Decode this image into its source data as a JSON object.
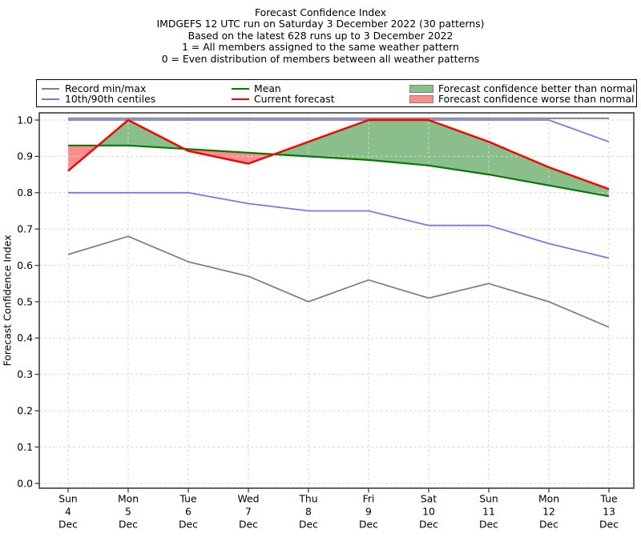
{
  "header": {
    "lines": [
      "Forecast Confidence Index",
      "IMDGEFS 12 UTC run on Saturday 3 December 2022 (30 patterns)",
      "Based on the latest 628 runs up to 3 December 2022",
      "1 = All members assigned to the same weather pattern",
      "0 = Even distribution of members between all weather patterns"
    ]
  },
  "legend": {
    "items": [
      {
        "label": "Record min/max",
        "swatch": "line",
        "color": "#808080"
      },
      {
        "label": "10th/90th centiles",
        "swatch": "line",
        "color": "#7878ee"
      },
      {
        "label": "Mean",
        "swatch": "line",
        "color": "#007d00"
      },
      {
        "label": "Current forecast",
        "swatch": "line",
        "color": "#fe0000"
      },
      {
        "label": "Forecast confidence better than normal",
        "swatch": "patch",
        "color": "#8abe8a"
      },
      {
        "label": "Forecast confidence worse than normal",
        "swatch": "patch",
        "color": "#f78f8f"
      }
    ]
  },
  "chart_data": {
    "type": "line",
    "title": "Forecast Confidence Index",
    "xlabel": "",
    "ylabel": "Forecast Confidence Index",
    "ylim": [
      0.0,
      1.0
    ],
    "yticks": [
      0.0,
      0.1,
      0.2,
      0.3,
      0.4,
      0.5,
      0.6,
      0.7,
      0.8,
      0.9,
      1.0
    ],
    "grid": true,
    "legend_position": "top",
    "categories": [
      {
        "day": "Sun",
        "date": "4",
        "month": "Dec"
      },
      {
        "day": "Mon",
        "date": "5",
        "month": "Dec"
      },
      {
        "day": "Tue",
        "date": "6",
        "month": "Dec"
      },
      {
        "day": "Wed",
        "date": "7",
        "month": "Dec"
      },
      {
        "day": "Thu",
        "date": "8",
        "month": "Dec"
      },
      {
        "day": "Fri",
        "date": "9",
        "month": "Dec"
      },
      {
        "day": "Sat",
        "date": "10",
        "month": "Dec"
      },
      {
        "day": "Sun",
        "date": "11",
        "month": "Dec"
      },
      {
        "day": "Mon",
        "date": "12",
        "month": "Dec"
      },
      {
        "day": "Tue",
        "date": "13",
        "month": "Dec"
      }
    ],
    "series": [
      {
        "name": "Record max",
        "color": "#808080",
        "values": [
          1.0,
          1.0,
          1.0,
          1.0,
          1.0,
          1.0,
          1.0,
          1.0,
          1.0,
          1.0
        ]
      },
      {
        "name": "Record min",
        "color": "#808080",
        "values": [
          0.63,
          0.68,
          0.61,
          0.57,
          0.5,
          0.56,
          0.51,
          0.55,
          0.5,
          0.43
        ]
      },
      {
        "name": "90th centile",
        "color": "#7878ee",
        "values": [
          1.0,
          1.0,
          1.0,
          1.0,
          1.0,
          1.0,
          1.0,
          1.0,
          1.0,
          0.94
        ]
      },
      {
        "name": "10th centile",
        "color": "#7878ee",
        "values": [
          0.8,
          0.8,
          0.8,
          0.77,
          0.75,
          0.75,
          0.71,
          0.71,
          0.66,
          0.62
        ]
      },
      {
        "name": "Mean",
        "color": "#007d00",
        "values": [
          0.93,
          0.93,
          0.92,
          0.91,
          0.9,
          0.89,
          0.875,
          0.85,
          0.82,
          0.79
        ]
      },
      {
        "name": "Current forecast",
        "color": "#fe0000",
        "values": [
          0.86,
          1.0,
          0.915,
          0.88,
          0.94,
          1.0,
          1.0,
          0.94,
          0.87,
          0.81
        ]
      }
    ],
    "fills": {
      "between": [
        "Current forecast",
        "Mean"
      ],
      "better_label": "Forecast confidence better than normal",
      "worse_label": "Forecast confidence worse than normal",
      "better_color": "#8abe8a",
      "worse_color": "#f78f8f"
    }
  },
  "colors": {
    "background": "#ffffff",
    "grid": "#d6d6d6",
    "spine": "#3c3c3c",
    "tick": "#3c3c3c",
    "text": "#000000"
  }
}
